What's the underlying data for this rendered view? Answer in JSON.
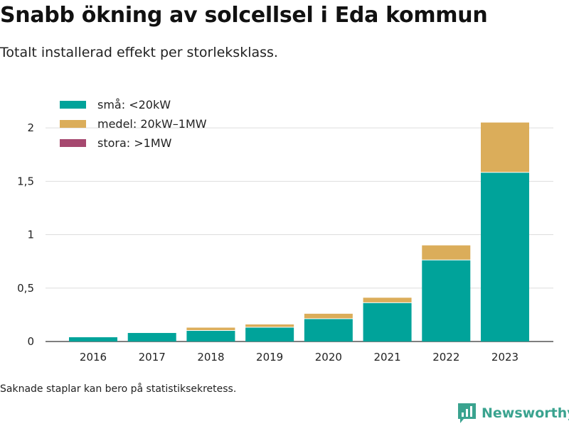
{
  "header": {
    "title": "Snabb ökning av solcellsel i Eda kommun",
    "subtitle": "Totalt installerad effekt per storleksklass."
  },
  "footnote": "Saknade staplar kan bero på statistiksekretess.",
  "brand": {
    "name": "Newsworthy",
    "color": "#3aa38f"
  },
  "chart_data": {
    "type": "bar",
    "stacked": true,
    "title": "Snabb ökning av solcellsel i Eda kommun",
    "subtitle": "Totalt installerad effekt per storleksklass.",
    "xlabel": "",
    "ylabel": "",
    "categories": [
      "2016",
      "2017",
      "2018",
      "2019",
      "2020",
      "2021",
      "2022",
      "2023"
    ],
    "ylim": [
      0,
      2.2
    ],
    "yticks": [
      0,
      0.5,
      1,
      1.5,
      2
    ],
    "ytick_labels": [
      "0",
      "0,5",
      "1",
      "1,5",
      "2"
    ],
    "grid": true,
    "legend_position": "top-left",
    "series": [
      {
        "name": "små: <20kW",
        "color": "#00a39a",
        "values": [
          0.04,
          0.08,
          0.1,
          0.13,
          0.21,
          0.36,
          0.76,
          1.58
        ]
      },
      {
        "name": "medel: 20kW–1MW",
        "color": "#dbad5a",
        "values": [
          0,
          0,
          0.03,
          0.03,
          0.05,
          0.05,
          0.14,
          0.47
        ]
      },
      {
        "name": "stora: >1MW",
        "color": "#a6486f",
        "values": [
          0,
          0,
          0,
          0,
          0,
          0,
          0,
          0
        ]
      }
    ]
  }
}
